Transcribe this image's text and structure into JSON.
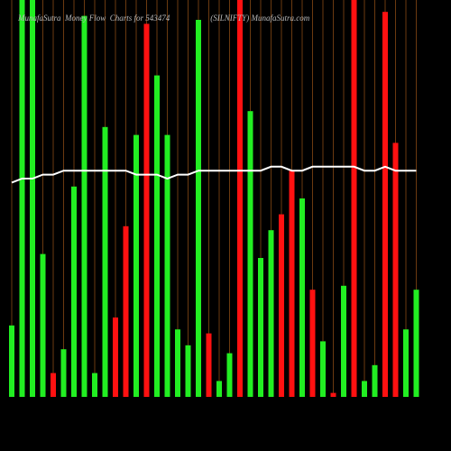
{
  "chart_data": {
    "type": "bar",
    "title": "MunafaSutra  Money Flow  Charts for 543474                    (SILNIFTY) MunafaSutra.com",
    "ylim": [
      0,
      100
    ],
    "grid": true,
    "grid_color": "#6b3a10",
    "line_color": "#ffffff",
    "series": [
      {
        "values": [
          18,
          100,
          100,
          36,
          6,
          12,
          53,
          96,
          6,
          68,
          20,
          43,
          66,
          94,
          81,
          66,
          17,
          13,
          95,
          16,
          4,
          11,
          100,
          72,
          35,
          42,
          46,
          57,
          50,
          27,
          14,
          1,
          28,
          100,
          4,
          8,
          97,
          64,
          17,
          27
        ],
        "colors": [
          "#22ee22",
          "#22ee22",
          "#22ee22",
          "#22ee22",
          "#ff1111",
          "#22ee22",
          "#22ee22",
          "#22ee22",
          "#22ee22",
          "#22ee22",
          "#ff1111",
          "#ff1111",
          "#22ee22",
          "#ff1111",
          "#22ee22",
          "#22ee22",
          "#22ee22",
          "#22ee22",
          "#22ee22",
          "#ff1111",
          "#22ee22",
          "#22ee22",
          "#ff1111",
          "#22ee22",
          "#22ee22",
          "#22ee22",
          "#ff1111",
          "#ff1111",
          "#22ee22",
          "#ff1111",
          "#22ee22",
          "#ff1111",
          "#22ee22",
          "#ff1111",
          "#22ee22",
          "#22ee22",
          "#ff1111",
          "#ff1111",
          "#22ee22",
          "#22ee22"
        ]
      },
      {
        "type": "line",
        "values": [
          54,
          55,
          55,
          56,
          56,
          57,
          57,
          57,
          57,
          57,
          57,
          57,
          56,
          56,
          56,
          55,
          56,
          56,
          57,
          57,
          57,
          57,
          57,
          57,
          57,
          58,
          58,
          57,
          57,
          58,
          58,
          58,
          58,
          58,
          57,
          57,
          58,
          57,
          57,
          57
        ]
      }
    ]
  }
}
